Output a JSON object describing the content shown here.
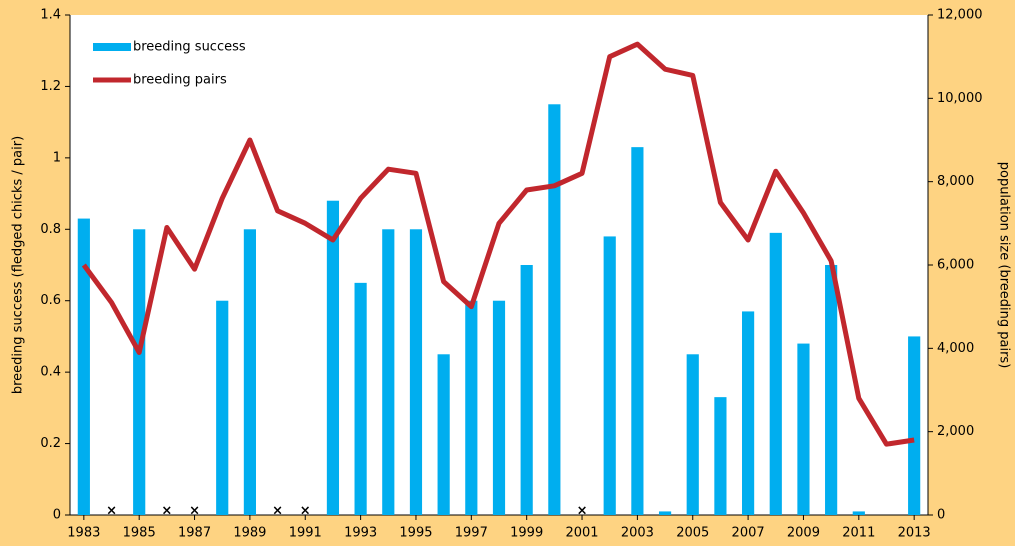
{
  "chart_data": {
    "type": "bar-line",
    "x": [
      1983,
      1984,
      1985,
      1986,
      1987,
      1988,
      1989,
      1990,
      1991,
      1992,
      1993,
      1994,
      1995,
      1996,
      1997,
      1998,
      1999,
      2000,
      2001,
      2002,
      2003,
      2004,
      2005,
      2006,
      2007,
      2008,
      2009,
      2010,
      2011,
      2012,
      2013
    ],
    "xlim": [
      1982.5,
      2013.5
    ],
    "xticks": [
      1983,
      1985,
      1987,
      1989,
      1991,
      1993,
      1995,
      1997,
      1999,
      2001,
      2003,
      2005,
      2007,
      2009,
      2011,
      2013
    ],
    "ylabel": "breeding success (fledged chicks / pair)",
    "y2label": "population size (breeding pairs)",
    "ylim": [
      0,
      1.4
    ],
    "yticks": [
      0,
      0.2,
      0.4,
      0.6,
      0.8,
      1,
      1.2,
      1.4
    ],
    "y2lim": [
      0,
      12000
    ],
    "y2ticks": [
      0,
      {
        "value": 2000,
        "label": "2,000"
      },
      {
        "value": 4000,
        "label": "4,000"
      },
      {
        "value": 6000,
        "label": "6,000"
      },
      {
        "value": 8000,
        "label": "8,000"
      },
      {
        "value": 10000,
        "label": "10,000"
      },
      {
        "value": 12000,
        "label": "12,000"
      }
    ],
    "legend": "top-left",
    "series": [
      {
        "name": "breeding success",
        "kind": "bar",
        "color": "#00aeef",
        "values": [
          0.83,
          null,
          0.8,
          null,
          null,
          0.6,
          0.8,
          null,
          null,
          0.88,
          0.65,
          0.8,
          0.8,
          0.45,
          0.6,
          0.6,
          0.7,
          1.15,
          null,
          0.78,
          1.03,
          0.01,
          0.45,
          0.33,
          0.57,
          0.79,
          0.48,
          0.7,
          0.01,
          null,
          0.5
        ]
      },
      {
        "name": "breeding pairs",
        "kind": "line",
        "axis": "y2",
        "color": "#c1272d",
        "values": [
          6000,
          5100,
          3900,
          6900,
          5900,
          7600,
          9000,
          7300,
          7000,
          6600,
          7600,
          8300,
          8200,
          5600,
          5000,
          7000,
          7800,
          7900,
          8200,
          11000,
          11300,
          10700,
          10550,
          7500,
          6600,
          8250,
          7250,
          6100,
          2800,
          1700,
          1800
        ]
      }
    ],
    "markers": {
      "symbol": "×",
      "x": [
        1984,
        1986,
        1987,
        1990,
        1991,
        2001
      ]
    }
  }
}
